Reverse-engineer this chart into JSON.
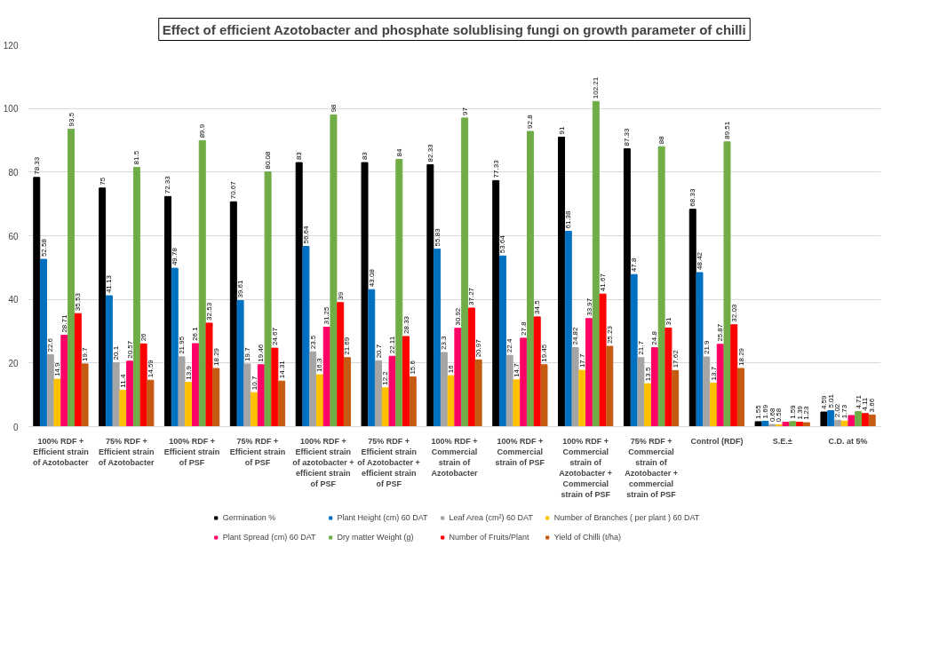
{
  "chart_data": {
    "type": "bar",
    "title": "Effect of efficient Azotobacter and phosphate solublising fungi on growth parameter of chilli",
    "categories": [
      "100% RDF + Efficient strain of Azotobacter",
      "75% RDF + Efficient strain of Azotobacter",
      "100% RDF + Efficient strain of PSF",
      "75% RDF + Efficient strain of PSF",
      "100% RDF + Efficient strain of azotobacter + efficient strain of PSF",
      "75% RDF + Efficient strain of Azotobacter + efficient strain of PSF",
      "100% RDF + Commercial strain of Azotobacter",
      "100% RDF + Commercial strain of PSF",
      "100% RDF + Commercial strain of Azotobacter + Commercial strain of PSF",
      "75% RDF + Commercial strain of Azotobacter + commercial strain of PSF",
      "Control (RDF)",
      "S.E.±",
      "C.D. at 5%"
    ],
    "series": [
      {
        "name": "Germination %",
        "color": "#000000",
        "values": [
          78.33,
          75,
          72.33,
          70.67,
          83,
          83,
          82.33,
          77.33,
          91,
          87.33,
          68.33,
          1.55,
          4.59
        ]
      },
      {
        "name": "Plant Height (cm) 60 DAT",
        "color": "#0070c0",
        "values": [
          52.58,
          41.13,
          49.78,
          39.61,
          56.64,
          43.08,
          55.83,
          53.64,
          61.38,
          47.8,
          48.42,
          1.69,
          5.01
        ]
      },
      {
        "name": "Leaf Area (cm²) 60 DAT",
        "color": "#a5a5a5",
        "values": [
          22.6,
          20.1,
          21.95,
          19.7,
          23.5,
          20.7,
          23.3,
          22.4,
          24.82,
          21.7,
          21.9,
          0.68,
          2.02
        ]
      },
      {
        "name": "Number of Branches ( per plant ) 60 DAT",
        "color": "#ffc000",
        "values": [
          14.9,
          11.4,
          13.9,
          10.7,
          16.3,
          12.2,
          16,
          14.7,
          17.7,
          13.5,
          13.7,
          0.58,
          1.73
        ]
      },
      {
        "name": "Plant Spread (cm) 60 DAT",
        "color": "#ff0066",
        "values": [
          28.71,
          20.57,
          26.1,
          19.46,
          31.25,
          22.11,
          30.92,
          27.8,
          33.97,
          24.8,
          25.87,
          1.4,
          3.5
        ],
        "value_labels": [
          "28.71",
          "20.57",
          "26.1",
          "19.46",
          "31.25",
          "22.11",
          "30.92",
          "27.8",
          "33.97",
          "24.8",
          "25.87",
          null,
          null
        ]
      },
      {
        "name": "Dry matter Weight (g)",
        "color": "#70ad47",
        "values": [
          93.5,
          81.5,
          89.9,
          80.08,
          98,
          84,
          97,
          92.8,
          102.21,
          88,
          89.51,
          1.59,
          4.71
        ]
      },
      {
        "name": "Number of Fruits/Plant",
        "color": "#ff0000",
        "values": [
          35.53,
          26,
          32.53,
          24.67,
          39,
          28.33,
          37.27,
          34.5,
          41.67,
          31,
          32.03,
          1.39,
          4.11
        ]
      },
      {
        "name": "Yield of Chilli (t/ha)",
        "color": "#c55a11",
        "values": [
          19.7,
          14.59,
          18.29,
          14.31,
          21.69,
          15.6,
          20.97,
          19.45,
          25.23,
          17.62,
          18.29,
          1.23,
          3.66
        ]
      }
    ],
    "data_labels": true,
    "ylim": [
      0,
      120
    ],
    "yticks": [
      0,
      20,
      40,
      60,
      80,
      100,
      120
    ],
    "grid": "y",
    "legend": "bottom"
  }
}
